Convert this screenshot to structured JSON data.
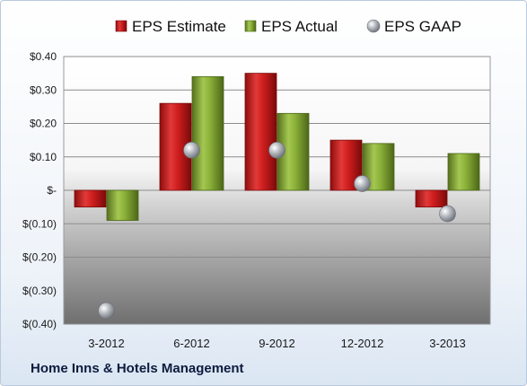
{
  "chart_data": {
    "type": "bar",
    "categories": [
      "3-2012",
      "6-2012",
      "9-2012",
      "12-2012",
      "3-2013"
    ],
    "series": [
      {
        "name": "EPS Estimate",
        "kind": "bar",
        "color": "#d21f1f",
        "values": [
          -0.05,
          0.26,
          0.35,
          0.15,
          -0.05
        ]
      },
      {
        "name": "EPS Actual",
        "kind": "bar",
        "color": "#8db33a",
        "values": [
          -0.09,
          0.34,
          0.23,
          0.14,
          0.11
        ]
      },
      {
        "name": "EPS GAAP",
        "kind": "marker",
        "color": "#9aa0a8",
        "values": [
          -0.36,
          0.12,
          0.12,
          0.02,
          -0.07
        ]
      }
    ],
    "ylim": [
      -0.4,
      0.4
    ],
    "yticks": [
      0.4,
      0.3,
      0.2,
      0.1,
      0,
      -0.1,
      -0.2,
      -0.3,
      -0.4
    ],
    "ytick_labels": [
      "$0.40",
      "$0.30",
      "$0.20",
      "$0.10",
      "$-",
      "$(0.10)",
      "$(0.20)",
      "$(0.30)",
      "$(0.40)"
    ],
    "grid": true,
    "legend_position": "top"
  },
  "footer": {
    "text": "Home Inns & Hotels Management"
  }
}
